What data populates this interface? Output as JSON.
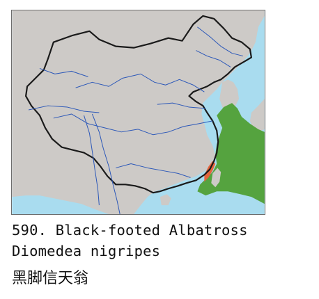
{
  "species": {
    "number_name": "590. Black-footed Albatross",
    "scientific_name": "Diomedea nigripes",
    "chinese_name": "黑脚信天翁"
  },
  "legend_colors": {
    "sea": "#a9dcef",
    "land": "#cdcac7",
    "range_main": "#55a33f",
    "range_coastal": "#e4643d",
    "border": "#1a1a1a",
    "river": "#2b57b8"
  }
}
